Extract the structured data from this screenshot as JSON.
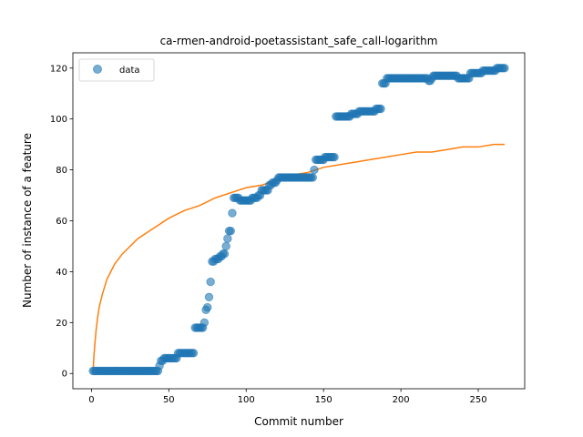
{
  "chart_data": {
    "type": "scatter",
    "title": "ca-rmen-android-poetassistant_safe_call-logarithm",
    "xlabel": "Commit number",
    "ylabel": "Number of instance of a feature",
    "xlim": [
      -12,
      280
    ],
    "ylim": [
      -6,
      126
    ],
    "xticks": [
      0,
      50,
      100,
      150,
      200,
      250
    ],
    "yticks": [
      0,
      20,
      40,
      60,
      80,
      100,
      120
    ],
    "grid": false,
    "legend_position": "top-left",
    "series": [
      {
        "name": "data",
        "kind": "scatter",
        "color": "#1f77b4",
        "points": [
          [
            1,
            1
          ],
          [
            2,
            1
          ],
          [
            3,
            1
          ],
          [
            4,
            1
          ],
          [
            5,
            1
          ],
          [
            6,
            1
          ],
          [
            7,
            1
          ],
          [
            8,
            1
          ],
          [
            9,
            1
          ],
          [
            10,
            1
          ],
          [
            11,
            1
          ],
          [
            12,
            1
          ],
          [
            13,
            1
          ],
          [
            14,
            1
          ],
          [
            15,
            1
          ],
          [
            16,
            1
          ],
          [
            17,
            1
          ],
          [
            18,
            1
          ],
          [
            19,
            1
          ],
          [
            20,
            1
          ],
          [
            21,
            1
          ],
          [
            22,
            1
          ],
          [
            23,
            1
          ],
          [
            24,
            1
          ],
          [
            25,
            1
          ],
          [
            26,
            1
          ],
          [
            27,
            1
          ],
          [
            28,
            1
          ],
          [
            29,
            1
          ],
          [
            30,
            1
          ],
          [
            31,
            1
          ],
          [
            32,
            1
          ],
          [
            33,
            1
          ],
          [
            34,
            1
          ],
          [
            35,
            1
          ],
          [
            36,
            1
          ],
          [
            37,
            1
          ],
          [
            38,
            1
          ],
          [
            39,
            1
          ],
          [
            40,
            1
          ],
          [
            41,
            1
          ],
          [
            42,
            1
          ],
          [
            43,
            1
          ],
          [
            44,
            3
          ],
          [
            45,
            5
          ],
          [
            46,
            5
          ],
          [
            47,
            6
          ],
          [
            48,
            6
          ],
          [
            49,
            6
          ],
          [
            50,
            6
          ],
          [
            51,
            6
          ],
          [
            52,
            6
          ],
          [
            53,
            6
          ],
          [
            54,
            6
          ],
          [
            55,
            6
          ],
          [
            56,
            8
          ],
          [
            57,
            8
          ],
          [
            58,
            8
          ],
          [
            59,
            8
          ],
          [
            60,
            8
          ],
          [
            61,
            8
          ],
          [
            62,
            8
          ],
          [
            63,
            8
          ],
          [
            64,
            8
          ],
          [
            65,
            8
          ],
          [
            66,
            8
          ],
          [
            67,
            18
          ],
          [
            68,
            18
          ],
          [
            69,
            18
          ],
          [
            70,
            18
          ],
          [
            71,
            18
          ],
          [
            72,
            18
          ],
          [
            73,
            20
          ],
          [
            74,
            25
          ],
          [
            75,
            26
          ],
          [
            76,
            30
          ],
          [
            77,
            36
          ],
          [
            78,
            44
          ],
          [
            79,
            44
          ],
          [
            80,
            45
          ],
          [
            81,
            45
          ],
          [
            82,
            45
          ],
          [
            83,
            46
          ],
          [
            84,
            46
          ],
          [
            85,
            47
          ],
          [
            86,
            47
          ],
          [
            87,
            50
          ],
          [
            88,
            53
          ],
          [
            89,
            56
          ],
          [
            90,
            56
          ],
          [
            91,
            63
          ],
          [
            92,
            69
          ],
          [
            93,
            69
          ],
          [
            94,
            69
          ],
          [
            95,
            69
          ],
          [
            96,
            68
          ],
          [
            97,
            68
          ],
          [
            98,
            68
          ],
          [
            99,
            68
          ],
          [
            100,
            68
          ],
          [
            101,
            68
          ],
          [
            102,
            68
          ],
          [
            103,
            68
          ],
          [
            104,
            69
          ],
          [
            105,
            69
          ],
          [
            106,
            69
          ],
          [
            107,
            69
          ],
          [
            108,
            70
          ],
          [
            109,
            70
          ],
          [
            110,
            72
          ],
          [
            111,
            72
          ],
          [
            112,
            72
          ],
          [
            113,
            72
          ],
          [
            114,
            72
          ],
          [
            115,
            74
          ],
          [
            116,
            74
          ],
          [
            117,
            75
          ],
          [
            118,
            75
          ],
          [
            119,
            75
          ],
          [
            120,
            76
          ],
          [
            121,
            77
          ],
          [
            122,
            77
          ],
          [
            123,
            77
          ],
          [
            124,
            77
          ],
          [
            125,
            77
          ],
          [
            126,
            77
          ],
          [
            127,
            77
          ],
          [
            128,
            77
          ],
          [
            129,
            77
          ],
          [
            130,
            77
          ],
          [
            131,
            77
          ],
          [
            132,
            77
          ],
          [
            133,
            77
          ],
          [
            134,
            77
          ],
          [
            135,
            77
          ],
          [
            136,
            77
          ],
          [
            137,
            77
          ],
          [
            138,
            77
          ],
          [
            139,
            77
          ],
          [
            140,
            77
          ],
          [
            141,
            77
          ],
          [
            142,
            77
          ],
          [
            143,
            77
          ],
          [
            144,
            80
          ],
          [
            145,
            84
          ],
          [
            146,
            84
          ],
          [
            147,
            84
          ],
          [
            148,
            84
          ],
          [
            149,
            84
          ],
          [
            150,
            84
          ],
          [
            151,
            85
          ],
          [
            152,
            85
          ],
          [
            153,
            85
          ],
          [
            154,
            85
          ],
          [
            155,
            85
          ],
          [
            156,
            85
          ],
          [
            157,
            85
          ],
          [
            158,
            101
          ],
          [
            159,
            101
          ],
          [
            160,
            101
          ],
          [
            161,
            101
          ],
          [
            162,
            101
          ],
          [
            163,
            101
          ],
          [
            164,
            101
          ],
          [
            165,
            101
          ],
          [
            166,
            101
          ],
          [
            167,
            101
          ],
          [
            168,
            102
          ],
          [
            169,
            102
          ],
          [
            170,
            102
          ],
          [
            171,
            102
          ],
          [
            172,
            102
          ],
          [
            173,
            103
          ],
          [
            174,
            103
          ],
          [
            175,
            103
          ],
          [
            176,
            103
          ],
          [
            177,
            103
          ],
          [
            178,
            103
          ],
          [
            179,
            103
          ],
          [
            180,
            103
          ],
          [
            181,
            103
          ],
          [
            182,
            103
          ],
          [
            183,
            103
          ],
          [
            184,
            104
          ],
          [
            185,
            104
          ],
          [
            186,
            104
          ],
          [
            187,
            104
          ],
          [
            188,
            114
          ],
          [
            189,
            114
          ],
          [
            190,
            114
          ],
          [
            191,
            116
          ],
          [
            192,
            116
          ],
          [
            193,
            116
          ],
          [
            194,
            116
          ],
          [
            195,
            116
          ],
          [
            196,
            116
          ],
          [
            197,
            116
          ],
          [
            198,
            116
          ],
          [
            199,
            116
          ],
          [
            200,
            116
          ],
          [
            201,
            116
          ],
          [
            202,
            116
          ],
          [
            203,
            116
          ],
          [
            204,
            116
          ],
          [
            205,
            116
          ],
          [
            206,
            116
          ],
          [
            207,
            116
          ],
          [
            208,
            116
          ],
          [
            209,
            116
          ],
          [
            210,
            116
          ],
          [
            211,
            116
          ],
          [
            212,
            116
          ],
          [
            213,
            116
          ],
          [
            214,
            116
          ],
          [
            215,
            116
          ],
          [
            216,
            116
          ],
          [
            217,
            116
          ],
          [
            218,
            115
          ],
          [
            219,
            115
          ],
          [
            220,
            116
          ],
          [
            221,
            117
          ],
          [
            222,
            117
          ],
          [
            223,
            117
          ],
          [
            224,
            117
          ],
          [
            225,
            117
          ],
          [
            226,
            117
          ],
          [
            227,
            117
          ],
          [
            228,
            117
          ],
          [
            229,
            117
          ],
          [
            230,
            117
          ],
          [
            231,
            117
          ],
          [
            232,
            117
          ],
          [
            233,
            117
          ],
          [
            234,
            117
          ],
          [
            235,
            117
          ],
          [
            236,
            117
          ],
          [
            237,
            116
          ],
          [
            238,
            116
          ],
          [
            239,
            116
          ],
          [
            240,
            116
          ],
          [
            241,
            116
          ],
          [
            242,
            116
          ],
          [
            243,
            116
          ],
          [
            244,
            116
          ],
          [
            245,
            118
          ],
          [
            246,
            118
          ],
          [
            247,
            118
          ],
          [
            248,
            118
          ],
          [
            249,
            118
          ],
          [
            250,
            118
          ],
          [
            251,
            118
          ],
          [
            252,
            118
          ],
          [
            253,
            119
          ],
          [
            254,
            119
          ],
          [
            255,
            119
          ],
          [
            256,
            119
          ],
          [
            257,
            119
          ],
          [
            258,
            119
          ],
          [
            259,
            119
          ],
          [
            260,
            119
          ],
          [
            261,
            119
          ],
          [
            262,
            120
          ],
          [
            263,
            120
          ],
          [
            264,
            120
          ],
          [
            265,
            120
          ],
          [
            266,
            120
          ],
          [
            267,
            120
          ]
        ]
      },
      {
        "kind": "line",
        "color": "#ff7f0e",
        "points": [
          [
            1,
            0
          ],
          [
            1.5,
            6
          ],
          [
            2,
            10
          ],
          [
            3,
            17
          ],
          [
            4,
            22
          ],
          [
            5,
            26
          ],
          [
            7,
            31
          ],
          [
            10,
            37
          ],
          [
            15,
            43
          ],
          [
            20,
            47
          ],
          [
            30,
            53
          ],
          [
            40,
            57
          ],
          [
            50,
            61
          ],
          [
            60,
            64
          ],
          [
            70,
            66
          ],
          [
            80,
            69
          ],
          [
            90,
            71
          ],
          [
            100,
            73
          ],
          [
            110,
            74
          ],
          [
            120,
            76
          ],
          [
            130,
            78
          ],
          [
            140,
            79
          ],
          [
            150,
            81
          ],
          [
            160,
            82
          ],
          [
            170,
            83
          ],
          [
            180,
            84
          ],
          [
            190,
            85
          ],
          [
            200,
            86
          ],
          [
            210,
            87
          ],
          [
            220,
            87
          ],
          [
            230,
            88
          ],
          [
            240,
            89
          ],
          [
            250,
            89
          ],
          [
            260,
            90
          ],
          [
            267,
            90
          ]
        ]
      }
    ]
  }
}
